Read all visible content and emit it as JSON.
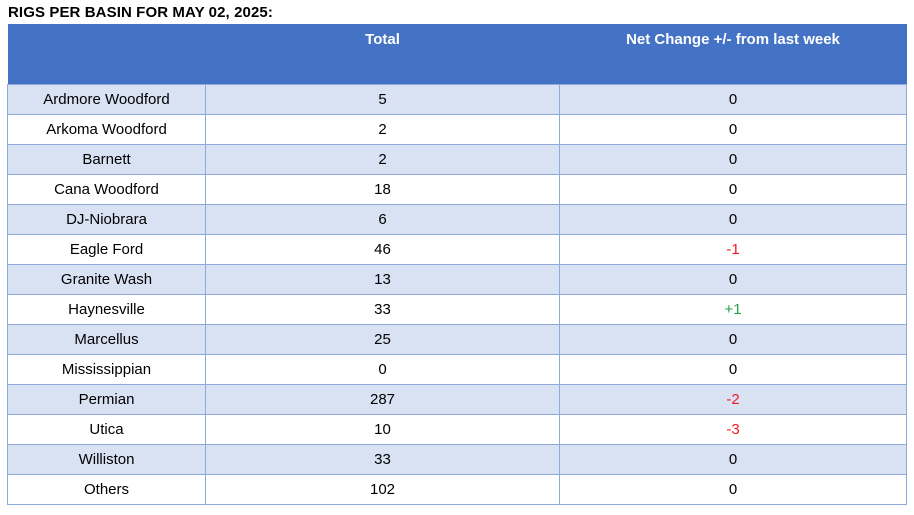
{
  "title": "RIGS PER BASIN FOR MAY 02, 2025:",
  "table": {
    "columns": [
      "",
      "Total",
      "Net Change +/- from last week"
    ],
    "rows": [
      {
        "basin": "Ardmore Woodford",
        "total": "5",
        "net_change": "0"
      },
      {
        "basin": "Arkoma Woodford",
        "total": "2",
        "net_change": "0"
      },
      {
        "basin": "Barnett",
        "total": "2",
        "net_change": "0"
      },
      {
        "basin": "Cana Woodford",
        "total": "18",
        "net_change": "0"
      },
      {
        "basin": "DJ-Niobrara",
        "total": "6",
        "net_change": "0"
      },
      {
        "basin": "Eagle Ford",
        "total": "46",
        "net_change": "-1"
      },
      {
        "basin": "Granite Wash",
        "total": "13",
        "net_change": "0"
      },
      {
        "basin": "Haynesville",
        "total": "33",
        "net_change": "+1"
      },
      {
        "basin": "Marcellus",
        "total": "25",
        "net_change": "0"
      },
      {
        "basin": "Mississippian",
        "total": "0",
        "net_change": "0"
      },
      {
        "basin": "Permian",
        "total": "287",
        "net_change": "-2"
      },
      {
        "basin": "Utica",
        "total": "10",
        "net_change": "-3"
      },
      {
        "basin": "Williston",
        "total": "33",
        "net_change": "0"
      },
      {
        "basin": "Others",
        "total": "102",
        "net_change": "0"
      }
    ]
  },
  "colors": {
    "header_bg": "#4472C4",
    "header_text": "#FFFFFF",
    "row_alt_bg": "#D9E2F3",
    "border": "#8EAADB",
    "negative": "#ED1C24",
    "positive": "#21A24C",
    "neutral": "#000000"
  }
}
